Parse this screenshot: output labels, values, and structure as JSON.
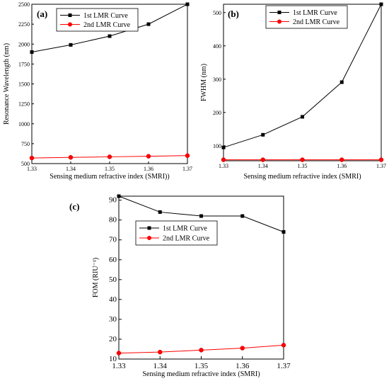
{
  "chart_data": [
    {
      "type": "line",
      "panel_label": "(a)",
      "xlabel": "Sensing medium refractive index (SMRI))",
      "ylabel": "Resonance Wavelength (nm)",
      "xlim": [
        1.33,
        1.37
      ],
      "ylim": [
        500,
        2500
      ],
      "xticks": [
        "1.33",
        "1.34",
        "1.35",
        "1.36",
        "1.37"
      ],
      "yticks": [
        "500",
        "750",
        "1000",
        "1250",
        "1500",
        "1750",
        "2000",
        "2250",
        "2500"
      ],
      "x": [
        1.33,
        1.34,
        1.35,
        1.36,
        1.37
      ],
      "legend_position": "top-left",
      "series": [
        {
          "name": "1st LMR Curve",
          "color": "#000000",
          "marker": "square",
          "values": [
            1900,
            1990,
            2100,
            2250,
            2500
          ]
        },
        {
          "name": "2nd LMR Curve",
          "color": "#ff0000",
          "marker": "circle",
          "values": [
            570,
            578,
            585,
            592,
            600
          ]
        }
      ]
    },
    {
      "type": "line",
      "panel_label": "(b)",
      "xlabel": "Sensing medium refractive index (SMRI)",
      "ylabel": "FWHM (nm)",
      "xlim": [
        1.33,
        1.37
      ],
      "ylim": [
        55,
        525
      ],
      "xticks": [
        "1.33",
        "1.34",
        "1.35",
        "1.36",
        "1.37"
      ],
      "yticks": [
        "100",
        "200",
        "300",
        "400",
        "500"
      ],
      "x": [
        1.33,
        1.34,
        1.35,
        1.36,
        1.37
      ],
      "legend_position": "top-left",
      "series": [
        {
          "name": "1st LMR Curve",
          "color": "#000000",
          "marker": "square",
          "values": [
            95,
            133,
            187,
            291,
            525
          ]
        },
        {
          "name": "2nd LMR Curve",
          "color": "#ff0000",
          "marker": "circle",
          "values": [
            58,
            58,
            58,
            58,
            58
          ]
        }
      ]
    },
    {
      "type": "line",
      "panel_label": "(c)",
      "xlabel": "Sensing medium refractive index (SMRI)",
      "ylabel": "FOM (RIU⁻¹)",
      "xlim": [
        1.33,
        1.37
      ],
      "ylim": [
        10,
        92
      ],
      "xticks": [
        "1.33",
        "1.34",
        "1.35",
        "1.36",
        "1.37"
      ],
      "yticks": [
        "10",
        "20",
        "30",
        "40",
        "50",
        "60",
        "70",
        "80",
        "90"
      ],
      "x": [
        1.33,
        1.34,
        1.35,
        1.36,
        1.37
      ],
      "legend_position": "top-right",
      "series": [
        {
          "name": "1st LMR Curve",
          "color": "#000000",
          "marker": "square",
          "values": [
            92,
            84,
            82,
            82,
            74
          ]
        },
        {
          "name": "2nd LMR Curve",
          "color": "#ff0000",
          "marker": "circle",
          "values": [
            13,
            13.5,
            14.5,
            15.5,
            17
          ]
        }
      ]
    }
  ]
}
